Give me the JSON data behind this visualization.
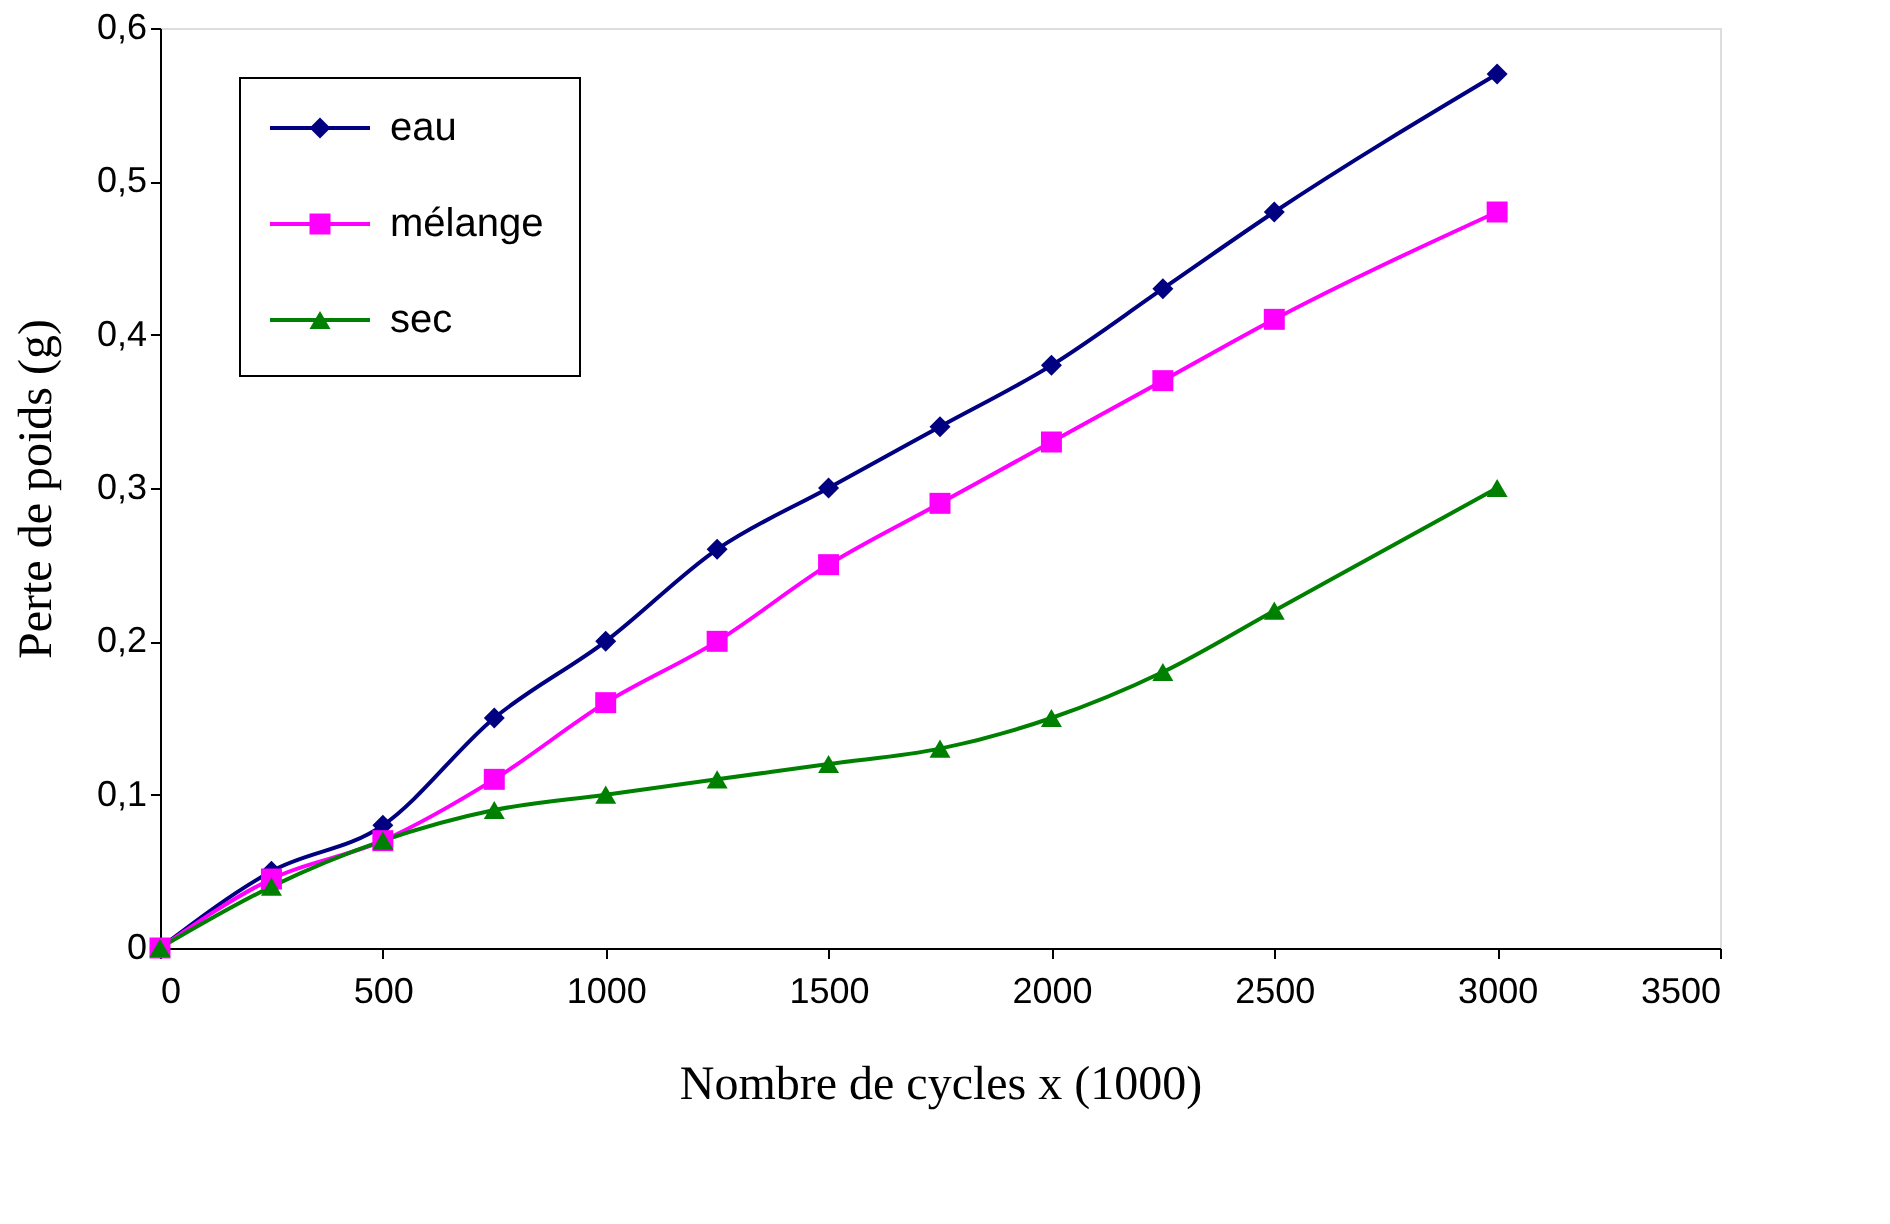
{
  "chart_data": {
    "type": "line",
    "xlabel": "Nombre de cycles x (1000)",
    "ylabel": "Perte de poids (g)",
    "x": [
      0,
      250,
      500,
      750,
      1000,
      1250,
      1500,
      1750,
      2000,
      2250,
      2500,
      3000
    ],
    "series": [
      {
        "name": "eau",
        "color": "#000080",
        "marker": "diamond",
        "values": [
          0,
          0.05,
          0.08,
          0.15,
          0.2,
          0.26,
          0.3,
          0.34,
          0.38,
          0.43,
          0.48,
          0.57
        ]
      },
      {
        "name": "mélange",
        "color": "#ff00ff",
        "marker": "square",
        "values": [
          0,
          0.045,
          0.07,
          0.11,
          0.16,
          0.2,
          0.25,
          0.29,
          0.33,
          0.37,
          0.41,
          0.48
        ]
      },
      {
        "name": "sec",
        "color": "#008000",
        "marker": "triangle",
        "values": [
          0,
          0.04,
          0.07,
          0.09,
          0.1,
          0.11,
          0.12,
          0.13,
          0.15,
          0.18,
          0.22,
          0.3
        ]
      }
    ],
    "xlim": [
      0,
      3500
    ],
    "xticks": [
      0,
      500,
      1000,
      1500,
      2000,
      2500,
      3000,
      3500
    ],
    "ylim": [
      0,
      0.6
    ],
    "yticks": [
      0,
      {
        "value": 0.1,
        "label": "0,1"
      },
      {
        "value": 0.2,
        "label": "0,2"
      },
      {
        "value": 0.3,
        "label": "0,3"
      },
      {
        "value": 0.4,
        "label": "0,4"
      },
      {
        "value": 0.5,
        "label": "0,5"
      },
      {
        "value": 0.6,
        "label": "0,6"
      }
    ],
    "grid": false,
    "legend": "top left",
    "line_style": "solid"
  }
}
